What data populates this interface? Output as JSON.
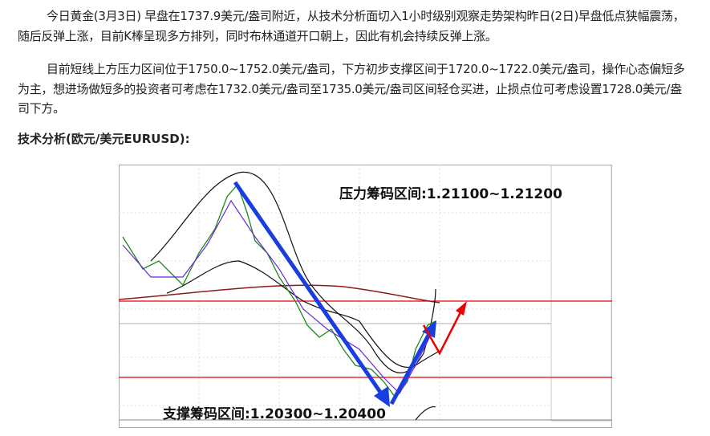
{
  "article": {
    "paragraphs": [
      "今日黄金(3月3日) 早盘在1737.9美元/盎司附近，从技术分析面切入1小时级别观察走势架构昨日(2日)早盘低点狭幅震荡，随后反弹上涨，目前K棒呈现多方排列，同时布林通道开口朝上，因此有机会持续反弹上涨。",
      "目前短线上方压力区间位于1750.0~1752.0美元/盎司，下方初步支撑区间于1720.0~1722.0美元/盎司，操作心态偏短多为主，想进场做短多的投资者可考虑在1732.0美元/盎司至1735.0美元/盎司区间轻仓买进，止损点位可考虑设置1728.0美元/盎司下方。"
    ],
    "heading": "技术分析(欧元/美元EURUSD):",
    "chart_annotations": [
      "压力筹码区间:1.21100~1.21200",
      "支撑筹码区间:1.20300~1.20400"
    ]
  }
}
